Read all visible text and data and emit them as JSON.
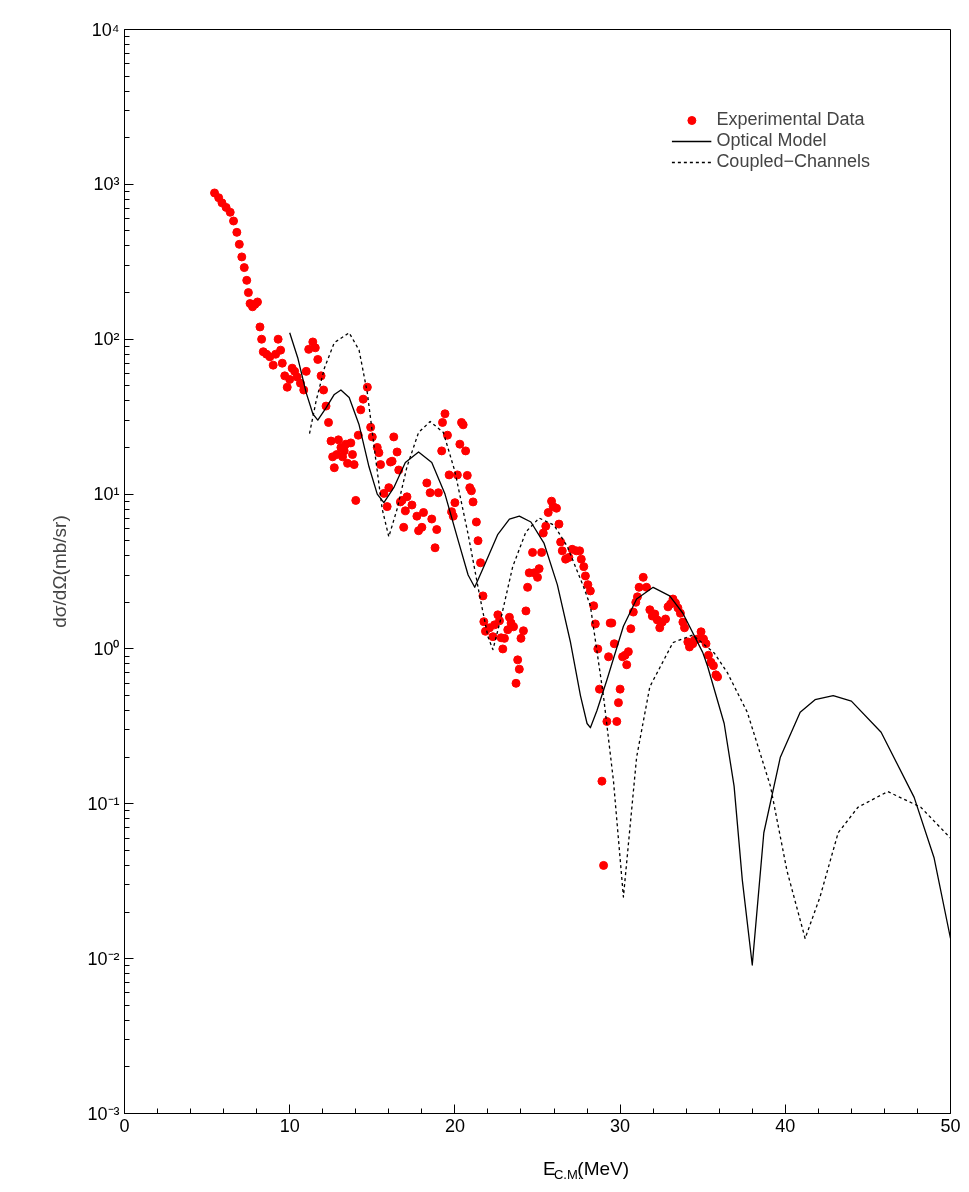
{
  "chart_data": {
    "type": "scatter",
    "xlabel": "E$_{C.M.}$(MeV)",
    "ylabel": "dσ/dΩ(mb/sr)",
    "xlim": [
      0,
      50
    ],
    "ylim": [
      0.001,
      10000
    ],
    "xticks": [
      0,
      10,
      20,
      30,
      40,
      50
    ],
    "yticks": [
      {
        "value": 0.001,
        "label": "10⁻³"
      },
      {
        "value": 0.01,
        "label": "10⁻²"
      },
      {
        "value": 0.1,
        "label": "10⁻¹"
      },
      {
        "value": 1,
        "label": "10⁰"
      },
      {
        "value": 10,
        "label": "10¹"
      },
      {
        "value": 100,
        "label": "10²"
      },
      {
        "value": 1000,
        "label": "10³"
      },
      {
        "value": 10000,
        "label": "10⁴"
      }
    ],
    "log": "y",
    "grid": false,
    "legend": "top right",
    "series": [
      {
        "name": "Experimental Data",
        "marker": "circle",
        "color": "#ff0000",
        "x": [
          5.45,
          5.7,
          5.9,
          6.15,
          6.4,
          6.6,
          6.8,
          6.95,
          7.1,
          7.25,
          7.4,
          7.5,
          7.6,
          7.75,
          7.9,
          8.05,
          8.2,
          8.3,
          8.4,
          8.6,
          8.8,
          9.0,
          9.15,
          9.3,
          9.45,
          9.55,
          9.7,
          9.85,
          10.0,
          10.15,
          10.3,
          10.45,
          10.65,
          10.85,
          11.0,
          11.15,
          11.4,
          11.55,
          11.7,
          11.9,
          12.05,
          12.2,
          12.35,
          12.5,
          12.6,
          12.7,
          12.85,
          12.95,
          13.1,
          13.2,
          13.3,
          13.4,
          13.5,
          13.7,
          13.8,
          13.9,
          14.0,
          14.15,
          14.3,
          14.45,
          14.7,
          14.9,
          15.0,
          15.3,
          15.4,
          15.5,
          15.7,
          15.9,
          16.0,
          16.1,
          16.2,
          16.3,
          16.5,
          16.6,
          16.7,
          16.8,
          16.9,
          17.0,
          17.1,
          17.4,
          17.7,
          17.8,
          18.0,
          18.1,
          18.3,
          18.5,
          18.6,
          18.8,
          18.9,
          19.0,
          19.2,
          19.25,
          19.4,
          19.55,
          19.65,
          19.8,
          19.9,
          20.0,
          20.15,
          20.3,
          20.4,
          20.5,
          20.65,
          20.75,
          20.9,
          21.0,
          21.1,
          21.3,
          21.4,
          21.55,
          21.7,
          21.75,
          21.85,
          22.1,
          22.3,
          22.4,
          22.6,
          22.7,
          22.8,
          22.9,
          23.0,
          23.2,
          23.3,
          23.4,
          23.55,
          23.7,
          23.8,
          23.9,
          24.0,
          24.15,
          24.3,
          24.4,
          24.5,
          24.7,
          24.8,
          25.0,
          25.1,
          25.25,
          25.35,
          25.5,
          25.65,
          25.85,
          25.95,
          26.15,
          26.3,
          26.4,
          26.5,
          26.7,
          26.9,
          27.1,
          27.35,
          27.55,
          27.65,
          27.8,
          27.9,
          28.05,
          28.2,
          28.4,
          28.5,
          28.65,
          28.75,
          28.9,
          29.0,
          29.2,
          29.3,
          29.4,
          29.5,
          29.65,
          29.8,
          29.9,
          30.0,
          30.15,
          30.3,
          30.4,
          30.5,
          30.65,
          30.8,
          30.95,
          31.05,
          31.15,
          31.4,
          31.6,
          31.8,
          31.95,
          32.1,
          32.25,
          32.4,
          32.55,
          32.75,
          32.9,
          33.05,
          33.2,
          33.35,
          33.5,
          33.65,
          33.8,
          33.9,
          34.1,
          34.2,
          34.4,
          34.5,
          34.7,
          34.9,
          35.05,
          35.2,
          35.35,
          35.5,
          35.65,
          35.8,
          35.9
        ],
        "values": [
          880,
          820,
          760,
          710,
          660,
          580,
          490,
          410,
          340,
          290,
          240,
          200,
          170,
          162,
          168,
          174,
          120,
          100,
          83,
          80,
          77,
          68,
          80,
          100,
          85,
          70,
          58,
          49,
          55,
          65,
          62,
          57,
          52,
          47,
          62,
          86,
          96,
          88,
          74,
          58,
          47,
          37,
          29,
          22,
          17.4,
          14.8,
          18,
          22.4,
          20,
          17.4,
          19,
          21,
          15.8,
          21.4,
          18,
          15.5,
          9.1,
          24,
          35,
          41,
          49,
          27,
          23.4,
          20,
          18.5,
          15.5,
          10.1,
          8.3,
          11,
          16.1,
          16.3,
          23.4,
          18.7,
          14.3,
          8.9,
          9.1,
          6.1,
          7.8,
          9.6,
          8.5,
          7.2,
          5.8,
          6.1,
          7.6,
          11.8,
          10.2,
          6.9,
          4.5,
          5.9,
          10.2,
          19,
          29,
          33,
          24,
          13.3,
          7.7,
          7.2,
          8.8,
          13.3,
          21,
          29,
          28,
          19,
          13.2,
          11,
          10.5,
          8.9,
          6.6,
          5.0,
          3.6,
          2.2,
          1.5,
          1.3,
          1.37,
          1.2,
          1.43,
          1.66,
          1.52,
          1.18,
          1.0,
          1.17,
          1.33,
          1.6,
          1.47,
          1.39,
          0.6,
          0.85,
          0.74,
          1.17,
          1.31,
          1.76,
          2.5,
          3.1,
          4.2,
          3.1,
          2.9,
          3.3,
          4.2,
          5.6,
          6.2,
          7.6,
          9.0,
          8.3,
          8.1,
          6.4,
          4.9,
          4.3,
          3.8,
          3.9,
          4.4,
          4.3,
          4.3,
          3.8,
          3.4,
          2.96,
          2.6,
          2.37,
          1.9,
          1.45,
          1.0,
          0.55,
          0.14,
          0.04,
          0.34,
          0.89,
          1.47,
          1.47,
          1.08,
          0.34,
          0.45,
          0.55,
          0.89,
          0.91,
          0.79,
          0.96,
          1.35,
          1.73,
          2.0,
          2.17,
          2.5,
          2.9,
          2.5,
          1.79,
          1.63,
          1.68,
          1.54,
          1.37,
          1.49,
          1.56,
          1.87,
          1.95,
          2.1,
          1.98,
          1.84,
          1.7,
          1.49,
          1.37,
          1.11,
          1.03,
          1.08,
          1.14,
          1.16,
          1.29,
          1.16,
          1.08,
          0.91,
          0.82,
          0.78,
          0.68,
          0.66
        ]
      },
      {
        "name": "Optical Model",
        "type": "line",
        "line_style": "solid",
        "color": "#000000",
        "x": [
          10.0,
          10.5,
          11.0,
          11.4,
          11.7,
          12.2,
          12.7,
          13.1,
          13.6,
          14.2,
          14.8,
          15.3,
          15.7,
          16.3,
          17.0,
          17.8,
          18.6,
          19.4,
          20.2,
          20.8,
          21.2,
          21.8,
          22.6,
          23.3,
          23.9,
          24.6,
          25.4,
          26.2,
          27.0,
          27.6,
          28.0,
          28.2,
          28.6,
          29.2,
          30.2,
          31.0,
          32.0,
          33.0,
          33.8,
          35.0,
          35.3,
          36.3,
          36.9,
          37.4,
          38.0,
          38.7,
          39.7,
          40.9,
          41.8,
          42.9,
          44.0,
          45.8,
          47.8,
          49.0,
          50.0
        ],
        "values": [
          110,
          75,
          45,
          33,
          30,
          36,
          44,
          47,
          42,
          28,
          15,
          10,
          8.8,
          11,
          16,
          18.7,
          16,
          10,
          5,
          3,
          2.5,
          3.5,
          5.5,
          6.9,
          7.2,
          6.6,
          4.8,
          2.6,
          1.1,
          0.5,
          0.33,
          0.31,
          0.4,
          0.63,
          1.4,
          2.1,
          2.5,
          2.2,
          1.7,
          0.95,
          0.77,
          0.33,
          0.13,
          0.032,
          0.0091,
          0.065,
          0.2,
          0.39,
          0.47,
          0.5,
          0.46,
          0.29,
          0.11,
          0.045,
          0.0135
        ]
      },
      {
        "name": "Coupled−Channels",
        "type": "line",
        "line_style": "dotted",
        "color": "#000000",
        "x": [
          11.2,
          11.6,
          12.1,
          12.7,
          13.6,
          14.2,
          14.7,
          15.2,
          15.6,
          16.0,
          16.5,
          17.1,
          17.8,
          18.5,
          19.3,
          20.0,
          20.8,
          21.5,
          22.0,
          22.3,
          22.8,
          23.5,
          24.3,
          25.1,
          26.0,
          26.8,
          27.8,
          28.2,
          29.0,
          29.6,
          30.2,
          31.0,
          31.8,
          33.2,
          34.4,
          35.7,
          36.5,
          37.7,
          39.1,
          40.1,
          41.2,
          42.1,
          43.2,
          44.4,
          46.2,
          48.2,
          50.0
        ],
        "values": [
          24.6,
          40,
          65,
          95,
          110,
          85,
          45,
          17,
          8,
          5.3,
          8,
          15,
          25,
          29.4,
          25,
          14,
          5.5,
          2.2,
          1.2,
          0.99,
          1.6,
          3.4,
          5.7,
          7.0,
          6.3,
          4.6,
          2.5,
          1.9,
          0.49,
          0.14,
          0.025,
          0.2,
          0.57,
          1.1,
          1.23,
          0.94,
          0.7,
          0.39,
          0.13,
          0.037,
          0.0135,
          0.025,
          0.065,
          0.095,
          0.12,
          0.095,
          0.06
        ]
      }
    ]
  }
}
